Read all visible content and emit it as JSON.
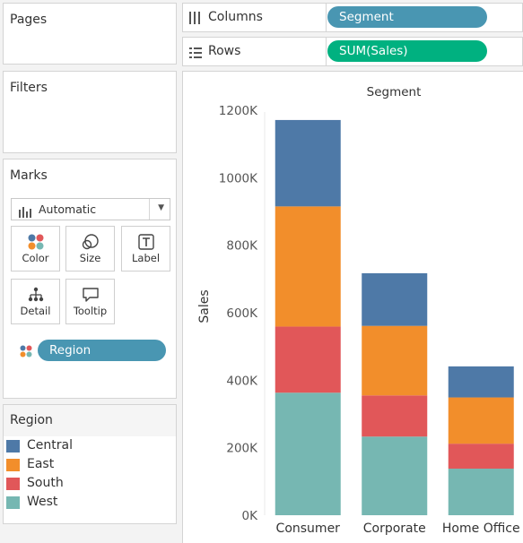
{
  "pages": {
    "title": "Pages"
  },
  "filters": {
    "title": "Filters"
  },
  "marks": {
    "title": "Marks",
    "mark_type": "Automatic",
    "buttons": {
      "color": "Color",
      "size": "Size",
      "label": "Label",
      "detail": "Detail",
      "tooltip": "Tooltip"
    },
    "color_pill": "Region"
  },
  "legend": {
    "title": "Region",
    "items": [
      {
        "label": "Central",
        "color": "#4e79a7"
      },
      {
        "label": "East",
        "color": "#f28e2b"
      },
      {
        "label": "South",
        "color": "#e15759"
      },
      {
        "label": "West",
        "color": "#76b7b2"
      }
    ]
  },
  "shelves": {
    "columns": {
      "label": "Columns",
      "pill": "Segment"
    },
    "rows": {
      "label": "Rows",
      "pill": "SUM(Sales)"
    }
  },
  "colors": {
    "dimension_pill": "#4996b2",
    "measure_pill": "#00b180"
  },
  "chart_data": {
    "type": "bar",
    "stacked": true,
    "title": "Segment",
    "xlabel": "",
    "ylabel": "Sales",
    "categories": [
      "Consumer",
      "Corporate",
      "Home Office"
    ],
    "series": [
      {
        "name": "West",
        "color": "#76b7b2",
        "values": [
          363000,
          233000,
          138000
        ]
      },
      {
        "name": "South",
        "color": "#e15759",
        "values": [
          196000,
          122000,
          74000
        ]
      },
      {
        "name": "East",
        "color": "#f28e2b",
        "values": [
          356000,
          206000,
          137000
        ]
      },
      {
        "name": "Central",
        "color": "#4e79a7",
        "values": [
          256000,
          156000,
          92000
        ]
      }
    ],
    "yticks": [
      "0K",
      "200K",
      "400K",
      "600K",
      "800K",
      "1000K",
      "1200K"
    ],
    "ylim": [
      0,
      1200000
    ],
    "grid": false
  }
}
